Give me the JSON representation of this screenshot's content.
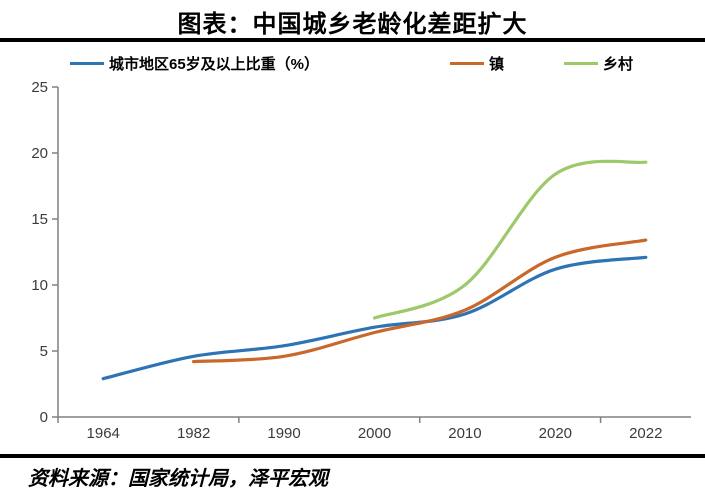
{
  "header": {
    "title": "图表：中国城乡老龄化差距扩大"
  },
  "legend": {
    "items": [
      {
        "label": "城市地区65岁及以上比重（%）",
        "color": "#2E74B5"
      },
      {
        "label": "镇",
        "color": "#C9682A"
      },
      {
        "label": "乡村",
        "color": "#9DC96B"
      }
    ]
  },
  "chart_data": {
    "type": "line",
    "title": "图表：中国城乡老龄化差距扩大",
    "categories": [
      "1964",
      "1982",
      "1990",
      "2000",
      "2010",
      "2020",
      "2022"
    ],
    "series": [
      {
        "name": "城市地区65岁及以上比重（%）",
        "color": "#2E74B5",
        "values": [
          2.9,
          4.6,
          5.4,
          6.8,
          7.8,
          11.2,
          12.1
        ]
      },
      {
        "name": "镇",
        "color": "#C9682A",
        "values": [
          null,
          4.2,
          4.6,
          6.4,
          8.1,
          12.1,
          13.4
        ]
      },
      {
        "name": "乡村",
        "color": "#9DC96B",
        "values": [
          null,
          null,
          null,
          7.5,
          10.0,
          18.4,
          19.3
        ]
      }
    ],
    "xlabel": "",
    "ylabel": "",
    "y_ticks": [
      0,
      5,
      10,
      15,
      20,
      25
    ],
    "ylim": [
      0,
      25
    ],
    "grid": false,
    "legend_position": "top",
    "axis_color": "#808080",
    "tick_label_color": "#3b3b3b"
  },
  "footer": {
    "source": "资料来源：国家统计局，泽平宏观"
  }
}
